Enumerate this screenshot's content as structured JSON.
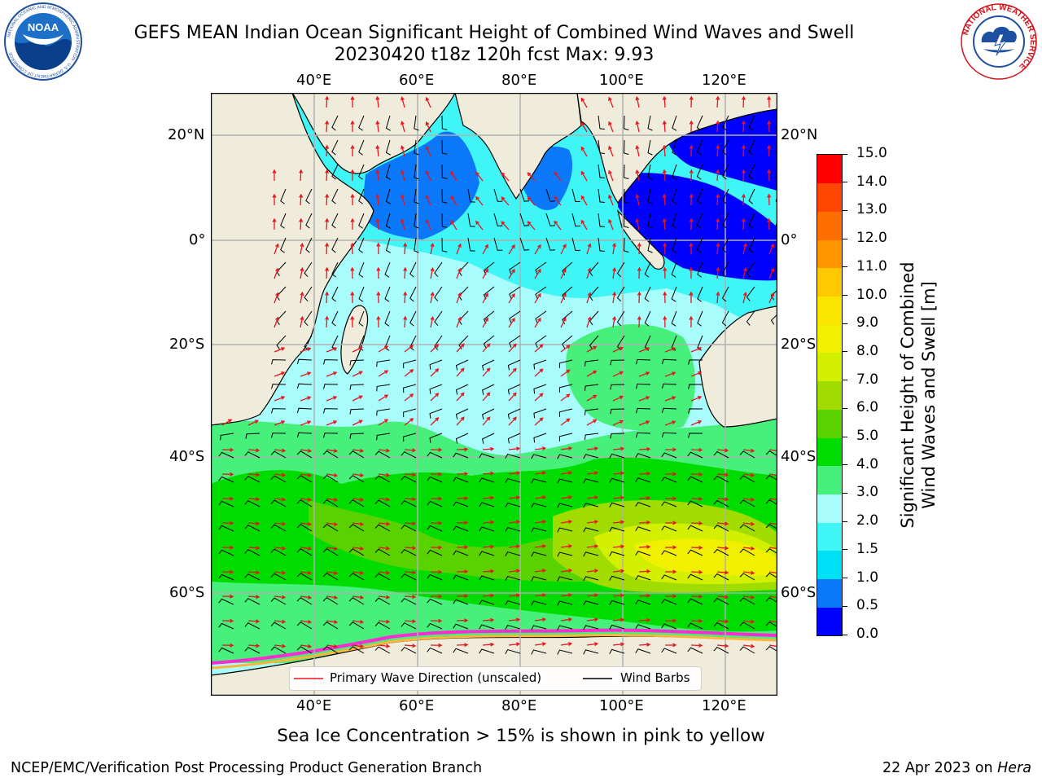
{
  "title": {
    "line1": "GEFS MEAN Indian Ocean Significant Height of Combined Wind Waves and Swell",
    "line2": "20230420 t18z 120h fcst   Max: 9.93"
  },
  "logos": {
    "left": {
      "text": "NOAA",
      "ring_text": "NATIONAL OCEANIC AND ATMOSPHERIC ADMINISTRATION · U.S. DEPARTMENT OF COMMERCE"
    },
    "right": {
      "ring_text": "NATIONAL WEATHER SERVICE"
    }
  },
  "map": {
    "lon_labels": [
      "40°E",
      "60°E",
      "80°E",
      "100°E",
      "120°E"
    ],
    "lat_labels": [
      "20°N",
      "0°",
      "20°S",
      "40°S",
      "60°S"
    ],
    "land_color": "#efecdc",
    "gridline_color": "#b0b0b0"
  },
  "legend": {
    "wave_label": "Primary Wave Direction (unscaled)",
    "wind_label": "Wind Barbs",
    "wave_color": "#e8141e",
    "wind_color": "#000000"
  },
  "colorbar": {
    "label_line1": "Significant Height of Combined",
    "label_line2": "Wind Waves and Swell [m]",
    "ticks": [
      "0.0",
      "0.5",
      "1.0",
      "1.5",
      "2.0",
      "3.0",
      "4.0",
      "5.0",
      "6.0",
      "7.0",
      "8.0",
      "9.0",
      "10.0",
      "11.0",
      "12.0",
      "13.0",
      "14.0",
      "15.0"
    ],
    "colors": [
      "#0000ff",
      "#0a78f8",
      "#00e0f5",
      "#3ff5f5",
      "#a8fcfc",
      "#46f07a",
      "#00dc00",
      "#5ad200",
      "#a0dc00",
      "#d2f000",
      "#f0f000",
      "#fae600",
      "#ffc800",
      "#ff9600",
      "#ff6e00",
      "#ff4600",
      "#ff0000"
    ]
  },
  "caption": "Sea Ice Concentration > 15% is shown in pink to yellow",
  "footer": {
    "left": "NCEP/EMC/Verification Post Processing Product Generation Branch",
    "right_date": "22 Apr 2023 on ",
    "right_host": "Hera"
  }
}
